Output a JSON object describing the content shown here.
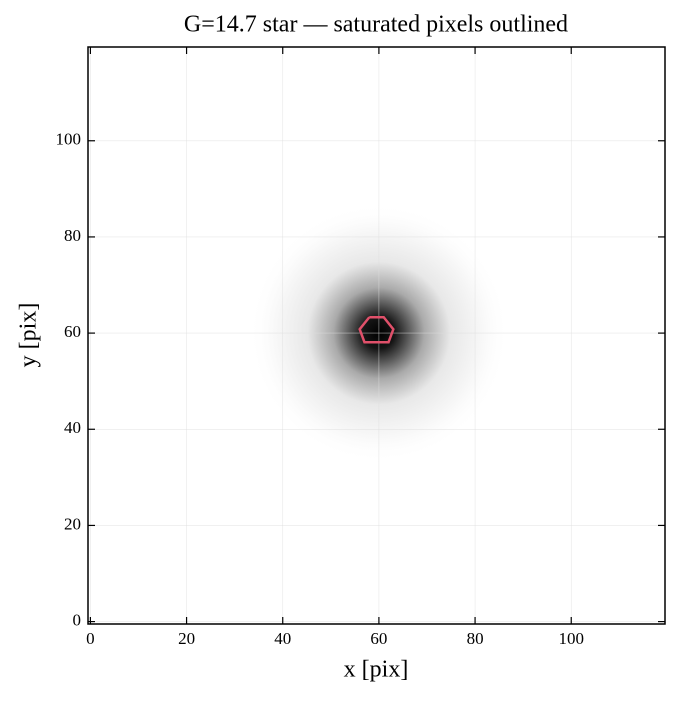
{
  "chart_data": {
    "type": "image",
    "title": "G=14.7 star — saturated pixels outlined",
    "x_label": "x [pix]",
    "y_label": "y [pix]",
    "xlim": [
      -0.5,
      119.5
    ],
    "ylim": [
      -0.5,
      119.5
    ],
    "xticks": [
      0,
      20,
      40,
      60,
      80,
      100
    ],
    "yticks": [
      0,
      20,
      40,
      60,
      80,
      100
    ],
    "grid": true,
    "source": {
      "x": 60,
      "y": 60
    },
    "contour": {
      "color": "#e0506a",
      "x": [
        58,
        61,
        63,
        62,
        57,
        56,
        58
      ],
      "y": [
        63.3,
        63.3,
        60.8,
        58.1,
        58.1,
        60.8,
        63.3
      ]
    }
  }
}
